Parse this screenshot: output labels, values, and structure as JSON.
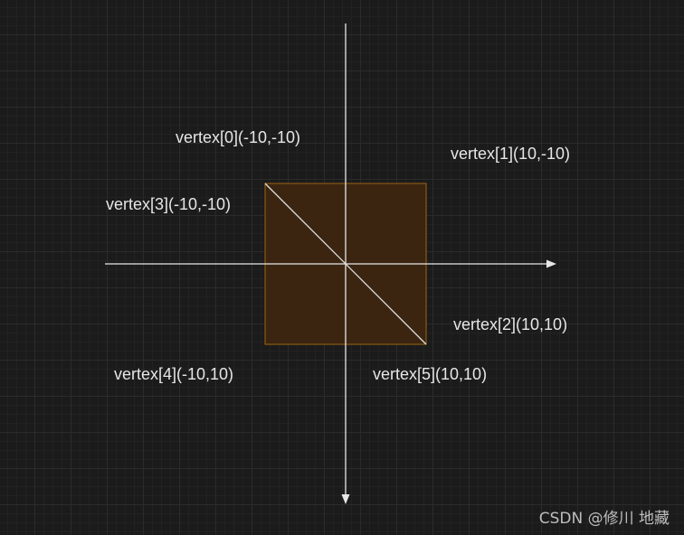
{
  "colors": {
    "axis": "#e8e8e8",
    "square_fill": "#3b2511",
    "square_stroke": "#8a5a14",
    "diagonal": "#e0e0e0",
    "label_text": "#e6e6e6"
  },
  "labels": {
    "v0": "vertex[0](-10,-10)",
    "v1": "vertex[1](10,-10)",
    "v2": "vertex[2](10,10)",
    "v3": "vertex[3](-10,-10)",
    "v4": "vertex[4](-10,10)",
    "v5": "vertex[5](10,10)"
  },
  "watermark": "CSDN @修川 地藏"
}
